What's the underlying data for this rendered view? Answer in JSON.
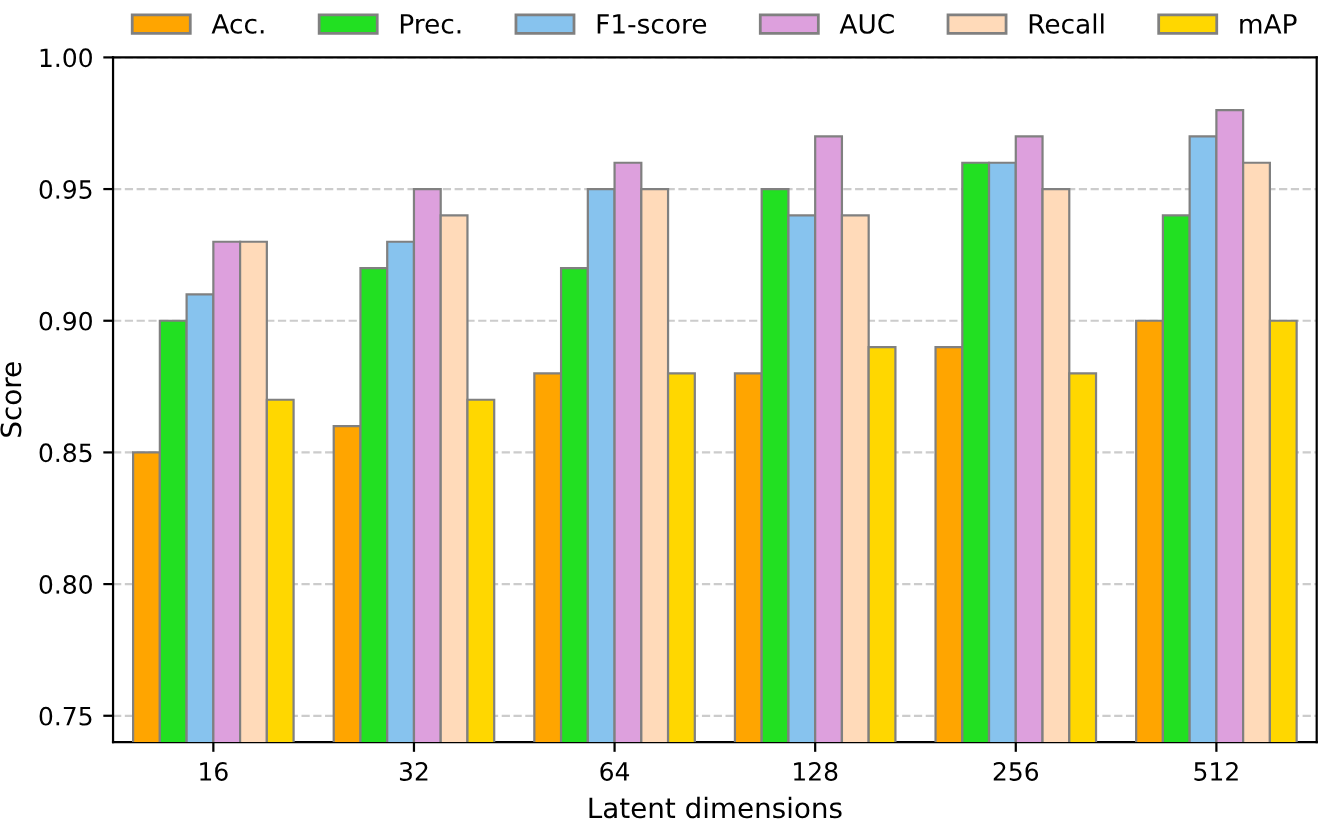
{
  "chart_data": {
    "type": "bar",
    "xlabel": "Latent dimensions",
    "ylabel": "Score",
    "categories": [
      "16",
      "32",
      "64",
      "128",
      "256",
      "512"
    ],
    "series": [
      {
        "name": "Acc.",
        "color": "#ffa500",
        "values": [
          0.85,
          0.86,
          0.88,
          0.88,
          0.89,
          0.9
        ]
      },
      {
        "name": "Prec.",
        "color": "#22e022",
        "values": [
          0.9,
          0.92,
          0.92,
          0.95,
          0.96,
          0.94
        ]
      },
      {
        "name": "F1-score",
        "color": "#87c3ee",
        "values": [
          0.91,
          0.93,
          0.95,
          0.94,
          0.96,
          0.97
        ]
      },
      {
        "name": "AUC",
        "color": "#dda0dd",
        "values": [
          0.93,
          0.95,
          0.96,
          0.97,
          0.97,
          0.98
        ]
      },
      {
        "name": "Recall",
        "color": "#ffdab9",
        "values": [
          0.93,
          0.94,
          0.95,
          0.94,
          0.95,
          0.96
        ]
      },
      {
        "name": "mAP",
        "color": "#ffd700",
        "values": [
          0.87,
          0.87,
          0.88,
          0.89,
          0.88,
          0.9
        ]
      }
    ],
    "ylim": [
      0.74,
      1.0
    ],
    "yticks": [
      {
        "value": 0.75,
        "label": "0.75"
      },
      {
        "value": 0.8,
        "label": "0.80"
      },
      {
        "value": 0.85,
        "label": "0.85"
      },
      {
        "value": 0.9,
        "label": "0.90"
      },
      {
        "value": 0.95,
        "label": "0.95"
      },
      {
        "value": 1.0,
        "label": "1.00"
      }
    ],
    "grid": "y",
    "legend": "top"
  }
}
